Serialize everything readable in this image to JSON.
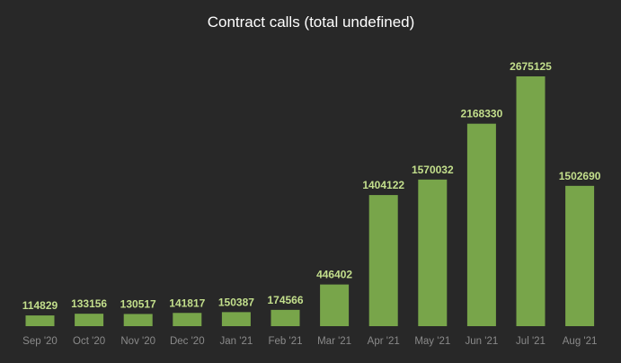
{
  "chart_data": {
    "type": "bar",
    "title": "Contract calls (total undefined)",
    "categories": [
      "Sep '20",
      "Oct '20",
      "Nov '20",
      "Dec '20",
      "Jan '21",
      "Feb '21",
      "Mar '21",
      "Apr '21",
      "May '21",
      "Jun '21",
      "Jul '21",
      "Aug '21"
    ],
    "values": [
      114829,
      133156,
      130517,
      141817,
      150387,
      174566,
      446402,
      1404122,
      1570032,
      2168330,
      2675125,
      1502690
    ],
    "ylim": [
      0,
      2675125
    ],
    "grid": false,
    "legend": "none",
    "colors": {
      "background": "#282828",
      "bar": "#78a54a",
      "value_label": "#c3df8c",
      "tick_label": "#8a8a8a",
      "title": "#ffffff"
    }
  }
}
